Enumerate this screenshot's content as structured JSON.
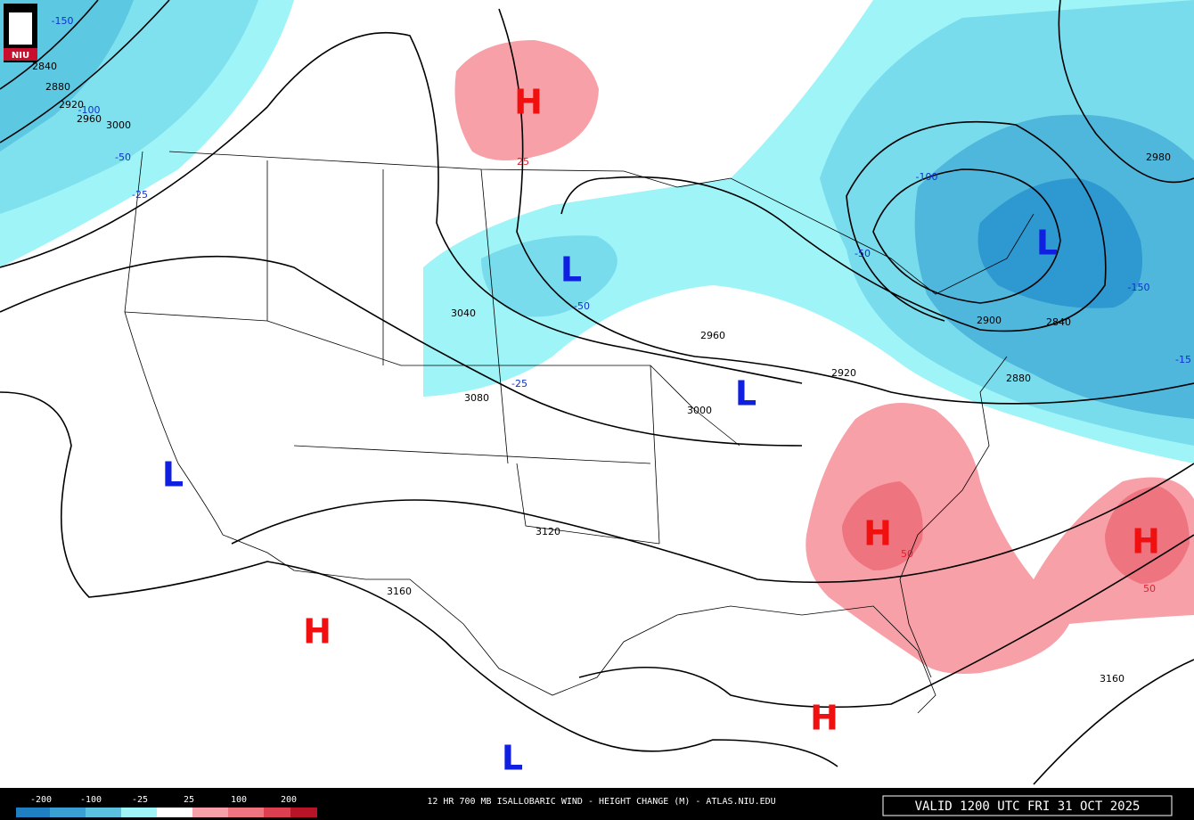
{
  "logo": "NIU",
  "centers": [
    {
      "label": "H"
    },
    {
      "label": "L"
    },
    {
      "label": "L"
    },
    {
      "label": "L"
    },
    {
      "label": "L"
    },
    {
      "label": "H"
    },
    {
      "label": "H"
    },
    {
      "label": "H"
    },
    {
      "label": "H"
    },
    {
      "label": "L"
    }
  ],
  "contour_labels": [
    "2840",
    "2880",
    "2920",
    "2960",
    "3000",
    "3040",
    "3080",
    "3120",
    "3160",
    "2960",
    "3000",
    "2920",
    "2900",
    "2840",
    "2880",
    "2980",
    "3160"
  ],
  "change_labels": [
    "-150",
    "-100",
    "-50",
    "-25",
    "-50",
    "-25",
    "-50",
    "-100",
    "-150",
    "-15",
    "25",
    "50",
    "50"
  ],
  "legend": {
    "ticks": [
      "-200",
      "-100",
      "-25",
      "25",
      "100",
      "200"
    ]
  },
  "footer": {
    "title": "12 HR 700 MB ISALLOBARIC WIND - HEIGHT CHANGE (M) - ATLAS.NIU.EDU",
    "valid": "VALID 1200 UTC FRI 31 OCT 2025"
  }
}
